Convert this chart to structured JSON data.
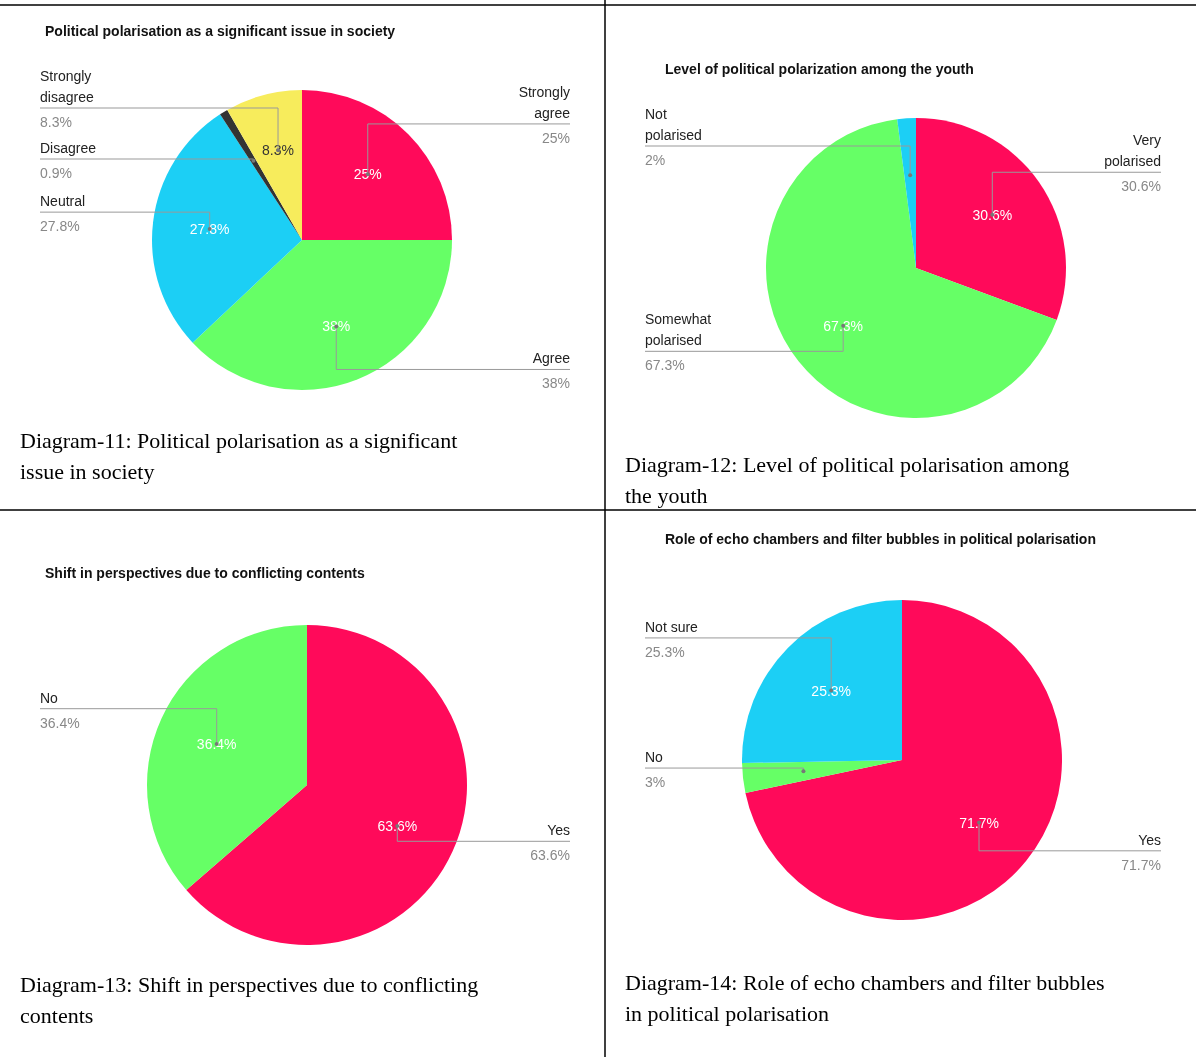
{
  "chart_data": [
    {
      "type": "pie",
      "title": "Political polarisation as a significant issue in society",
      "categories": [
        "Strongly agree",
        "Agree",
        "Neutral",
        "Disagree",
        "Strongly disagree"
      ],
      "values": [
        25,
        38,
        27.8,
        0.9,
        8.3
      ],
      "value_labels": [
        "25%",
        "38%",
        "27.8%",
        "0.9%",
        "8.3%"
      ],
      "colors": [
        "#ff0a5a",
        "#66ff66",
        "#1ccff5",
        "#333333",
        "#f7ec5c"
      ],
      "annotations": [
        "Diagram-11: Political polarisation as a significant issue in society"
      ]
    },
    {
      "type": "pie",
      "title": "Level of political polarization among the youth",
      "categories": [
        "Very polarised",
        "Somewhat polarised",
        "Not polarised"
      ],
      "values": [
        30.6,
        67.3,
        2
      ],
      "value_labels": [
        "30.6%",
        "67.3%",
        "2%"
      ],
      "colors": [
        "#ff0a5a",
        "#66ff66",
        "#1ccff5"
      ],
      "annotations": [
        "Diagram-12: Level of political polarisation among the youth"
      ]
    },
    {
      "type": "pie",
      "title": "Shift in perspectives due to conflicting contents",
      "categories": [
        "Yes",
        "No"
      ],
      "values": [
        63.6,
        36.4
      ],
      "value_labels": [
        "63.6%",
        "36.4%"
      ],
      "colors": [
        "#ff0a5a",
        "#66ff66"
      ],
      "annotations": [
        "Diagram-13: Shift in perspectives due to conflicting contents"
      ]
    },
    {
      "type": "pie",
      "title": "Role of echo chambers and filter bubbles in political polarisation",
      "categories": [
        "Yes",
        "No",
        "Not sure"
      ],
      "values": [
        71.7,
        3,
        25.3
      ],
      "value_labels": [
        "71.7%",
        "3%",
        "25.3%"
      ],
      "colors": [
        "#ff0a5a",
        "#66ff66",
        "#1ccff5"
      ],
      "annotations": [
        "Diagram-14: Role of echo chambers and filter bubbles in political polarisation"
      ]
    }
  ]
}
